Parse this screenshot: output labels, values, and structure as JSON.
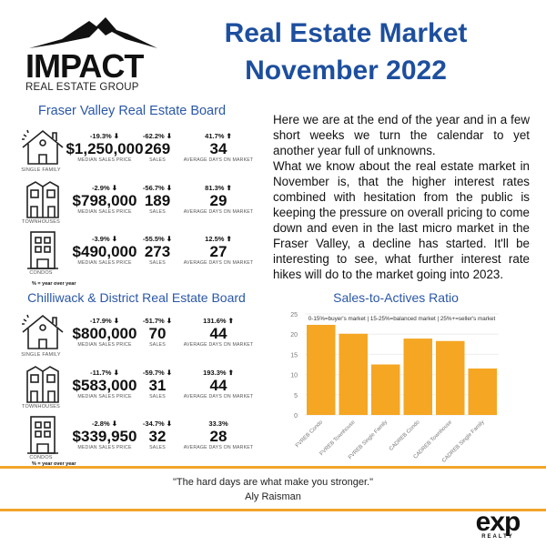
{
  "logo": {
    "main": "IMPACT",
    "sub": "REAL ESTATE GROUP"
  },
  "header": {
    "line1": "Real Estate Market",
    "line2": "November 2022"
  },
  "captions": {
    "price": "MEDIAN SALES PRICE",
    "sales": "SALES",
    "days": "AVERAGE DAYS ON MARKET",
    "yoy": "% = year over year"
  },
  "boards": [
    {
      "title": "Fraser Valley Real Estate Board",
      "rows": [
        {
          "type": "SINGLE FAMILY",
          "icon": "house-icon",
          "price_pct": "-19.3%",
          "price_dir": "down",
          "price": "$1,250,000",
          "sales_pct": "-62.2%",
          "sales_dir": "down",
          "sales": "269",
          "days_pct": "41.7%",
          "days_dir": "up",
          "days": "34"
        },
        {
          "type": "TOWNHOUSES",
          "icon": "townhouse-icon",
          "price_pct": "-2.9%",
          "price_dir": "down",
          "price": "$798,000",
          "sales_pct": "-56.7%",
          "sales_dir": "down",
          "sales": "189",
          "days_pct": "81.3%",
          "days_dir": "up",
          "days": "29"
        },
        {
          "type": "CONDOS",
          "icon": "condo-icon",
          "price_pct": "-3.9%",
          "price_dir": "down",
          "price": "$490,000",
          "sales_pct": "-55.5%",
          "sales_dir": "down",
          "sales": "273",
          "days_pct": "12.5%",
          "days_dir": "up",
          "days": "27"
        }
      ]
    },
    {
      "title": "Chilliwack & District Real Estate Board",
      "rows": [
        {
          "type": "SINGLE FAMILY",
          "icon": "house-icon",
          "price_pct": "-17.9%",
          "price_dir": "down",
          "price": "$800,000",
          "sales_pct": "-51.7%",
          "sales_dir": "down",
          "sales": "70",
          "days_pct": "131.6%",
          "days_dir": "up",
          "days": "44"
        },
        {
          "type": "TOWNHOUSES",
          "icon": "townhouse-icon",
          "price_pct": "-11.7%",
          "price_dir": "down",
          "price": "$583,000",
          "sales_pct": "-59.7%",
          "sales_dir": "down",
          "sales": "31",
          "days_pct": "193.3%",
          "days_dir": "up",
          "days": "44"
        },
        {
          "type": "CONDOS",
          "icon": "condo-icon",
          "price_pct": "-2.8%",
          "price_dir": "down",
          "price": "$339,950",
          "sales_pct": "-34.7%",
          "sales_dir": "down",
          "sales": "32",
          "days_pct": "33.3%",
          "days_dir": "",
          "days": "28"
        }
      ]
    }
  ],
  "paragraph": {
    "p1": "Here we are at the end of the year and in a few short weeks we turn the calendar to yet another year full of unknowns.",
    "p2": "What we know about the real estate market in November is, that the higher interest rates combined with hesitation from the public is keeping the pressure on overall pricing to come down and even in the last micro market in the Fraser Valley, a decline has started. It'll be interesting to see, what further interest rate hikes will do to the market going into 2023."
  },
  "chart_data": {
    "type": "bar",
    "title": "Sales-to-Actives Ratio",
    "annotation": "0-15%=buyer's market | 15-25%=balanced market | 25%+=seller's market",
    "categories": [
      "FVREB Condo",
      "FVREB Townhouse",
      "FVREB Single Family",
      "CADREB Condo",
      "CADREB Townhouse",
      "CADREB Single Family"
    ],
    "values": [
      22.3,
      20.1,
      12.5,
      18.9,
      18.3,
      11.5
    ],
    "ylim": [
      0,
      25
    ],
    "yticks": [
      "0",
      "5",
      "10",
      "15",
      "20",
      "25"
    ],
    "grid": true,
    "color": "#f5a623"
  },
  "quote": {
    "text": "\"The hard days are what make you stronger.\"",
    "author": "Aly Raisman"
  },
  "brand": {
    "main": "exp",
    "sub": "REALTY"
  },
  "colors": {
    "accent": "#f2a52a",
    "title": "#1d4f9e"
  }
}
